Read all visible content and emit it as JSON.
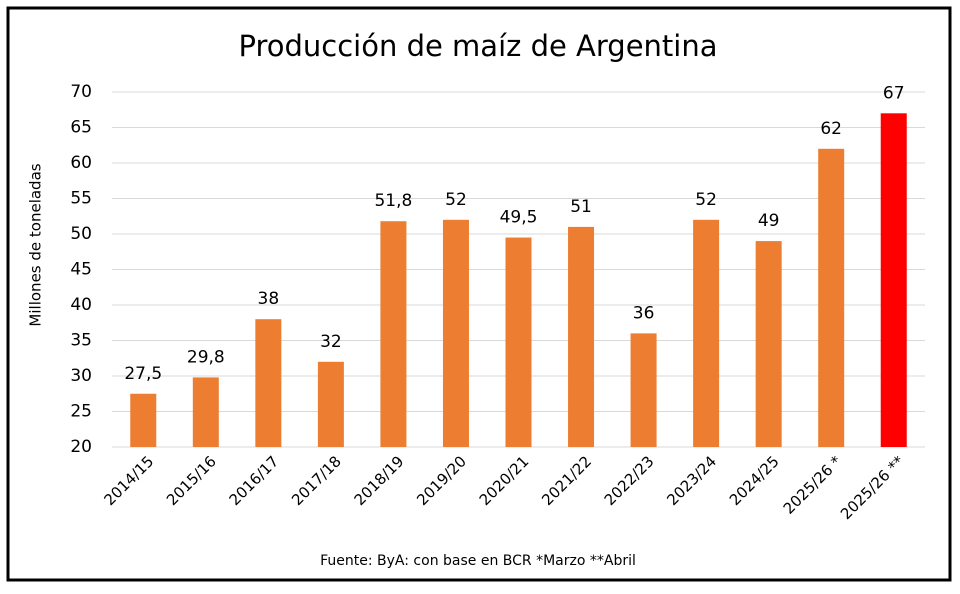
{
  "chart_data": {
    "type": "bar",
    "title": "Producción de maíz de Argentina",
    "y_label": "Millones de toneladas",
    "footnote": "Fuente: ByA: con base en BCR  *Marzo **Abril",
    "categories": [
      "2014/15",
      "2015/16",
      "2016/17",
      "2017/18",
      "2018/19",
      "2019/20",
      "2020/21",
      "2021/22",
      "2022/23",
      "2023/24",
      "2024/25",
      "2025/26 *",
      "2025/26 **"
    ],
    "values": [
      27.5,
      29.8,
      38,
      32,
      51.8,
      52,
      49.5,
      51,
      36,
      52,
      49,
      62,
      67
    ],
    "value_labels": [
      "27,5",
      "29,8",
      "38",
      "32",
      "51,8",
      "52",
      "49,5",
      "51",
      "36",
      "52",
      "49",
      "62",
      "67"
    ],
    "colors": [
      "#ed7d31",
      "#ed7d31",
      "#ed7d31",
      "#ed7d31",
      "#ed7d31",
      "#ed7d31",
      "#ed7d31",
      "#ed7d31",
      "#ed7d31",
      "#ed7d31",
      "#ed7d31",
      "#ed7d31",
      "#ff0000"
    ],
    "ylim": [
      20,
      70
    ],
    "yticks": [
      20,
      25,
      30,
      35,
      40,
      45,
      50,
      55,
      60,
      65,
      70
    ],
    "grid": true
  }
}
